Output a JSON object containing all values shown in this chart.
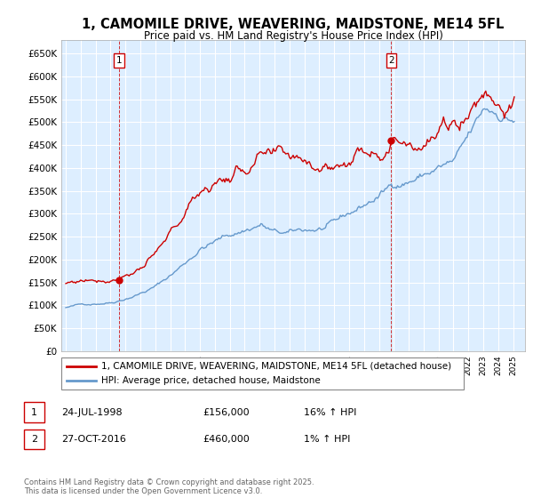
{
  "title": "1, CAMOMILE DRIVE, WEAVERING, MAIDSTONE, ME14 5FL",
  "subtitle": "Price paid vs. HM Land Registry's House Price Index (HPI)",
  "ylabel_ticks": [
    "£0",
    "£50K",
    "£100K",
    "£150K",
    "£200K",
    "£250K",
    "£300K",
    "£350K",
    "£400K",
    "£450K",
    "£500K",
    "£550K",
    "£600K",
    "£650K"
  ],
  "ytick_vals": [
    0,
    50000,
    100000,
    150000,
    200000,
    250000,
    300000,
    350000,
    400000,
    450000,
    500000,
    550000,
    600000,
    650000
  ],
  "ylim": [
    0,
    680000
  ],
  "xlim_start": 1994.7,
  "xlim_end": 2025.8,
  "purchase1_x": 1998.56,
  "purchase1_y": 156000,
  "purchase2_x": 2016.83,
  "purchase2_y": 460000,
  "legend_line1": "1, CAMOMILE DRIVE, WEAVERING, MAIDSTONE, ME14 5FL (detached house)",
  "legend_line2": "HPI: Average price, detached house, Maidstone",
  "note1_label": "1",
  "note1_date": "24-JUL-1998",
  "note1_price": "£156,000",
  "note1_hpi": "16% ↑ HPI",
  "note2_label": "2",
  "note2_date": "27-OCT-2016",
  "note2_price": "£460,000",
  "note2_hpi": "1% ↑ HPI",
  "copyright_text": "Contains HM Land Registry data © Crown copyright and database right 2025.\nThis data is licensed under the Open Government Licence v3.0.",
  "line_color_red": "#cc0000",
  "line_color_blue": "#6699cc",
  "bg_color": "#ddeeff",
  "grid_color": "#ffffff",
  "title_fontsize": 10.5,
  "subtitle_fontsize": 8.5
}
